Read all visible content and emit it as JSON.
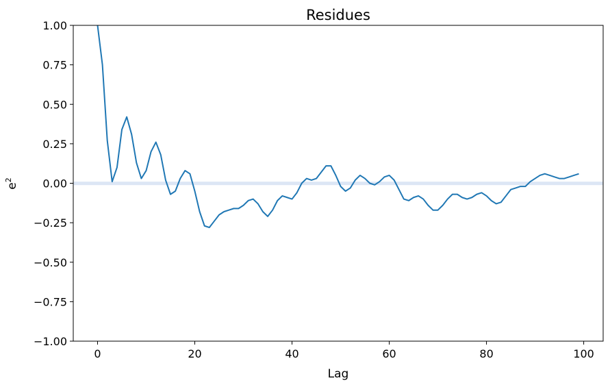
{
  "chart_data": {
    "type": "line",
    "title": "Residues",
    "xlabel": "Lag",
    "ylabel_base": "e",
    "ylabel_sup": "2",
    "xlim": [
      -5,
      104
    ],
    "ylim": [
      -1.0,
      1.0
    ],
    "xticks": [
      0,
      20,
      40,
      60,
      80,
      100
    ],
    "yticks": [
      -1.0,
      -0.75,
      -0.5,
      -0.25,
      0.0,
      0.25,
      0.5,
      0.75,
      1.0
    ],
    "ytick_labels": [
      "−1.00",
      "−0.75",
      "−0.50",
      "−0.25",
      "0.00",
      "0.25",
      "0.50",
      "0.75",
      "1.00"
    ],
    "grid": false,
    "line_color": "#1f77b4",
    "band": {
      "y_low": -0.01,
      "y_high": 0.01,
      "color": "#dce6f5"
    },
    "series": [
      {
        "values": [
          1.0,
          0.75,
          0.27,
          0.01,
          0.1,
          0.34,
          0.42,
          0.31,
          0.13,
          0.03,
          0.08,
          0.2,
          0.26,
          0.18,
          0.02,
          -0.07,
          -0.05,
          0.03,
          0.08,
          0.06,
          -0.05,
          -0.18,
          -0.27,
          -0.28,
          -0.24,
          -0.2,
          -0.18,
          -0.17,
          -0.16,
          -0.16,
          -0.14,
          -0.11,
          -0.1,
          -0.13,
          -0.18,
          -0.21,
          -0.17,
          -0.11,
          -0.08,
          -0.09,
          -0.1,
          -0.06,
          0.0,
          0.03,
          0.02,
          0.03,
          0.07,
          0.11,
          0.11,
          0.05,
          -0.02,
          -0.05,
          -0.03,
          0.02,
          0.05,
          0.03,
          0.0,
          -0.01,
          0.01,
          0.04,
          0.05,
          0.02,
          -0.04,
          -0.1,
          -0.11,
          -0.09,
          -0.08,
          -0.1,
          -0.14,
          -0.17,
          -0.17,
          -0.14,
          -0.1,
          -0.07,
          -0.07,
          -0.09,
          -0.1,
          -0.09,
          -0.07,
          -0.06,
          -0.08,
          -0.11,
          -0.13,
          -0.12,
          -0.08,
          -0.04,
          -0.03,
          -0.02,
          -0.02,
          0.01,
          0.03,
          0.05,
          0.06,
          0.05,
          0.04,
          0.03,
          0.03,
          0.04,
          0.05,
          0.06
        ]
      }
    ]
  }
}
